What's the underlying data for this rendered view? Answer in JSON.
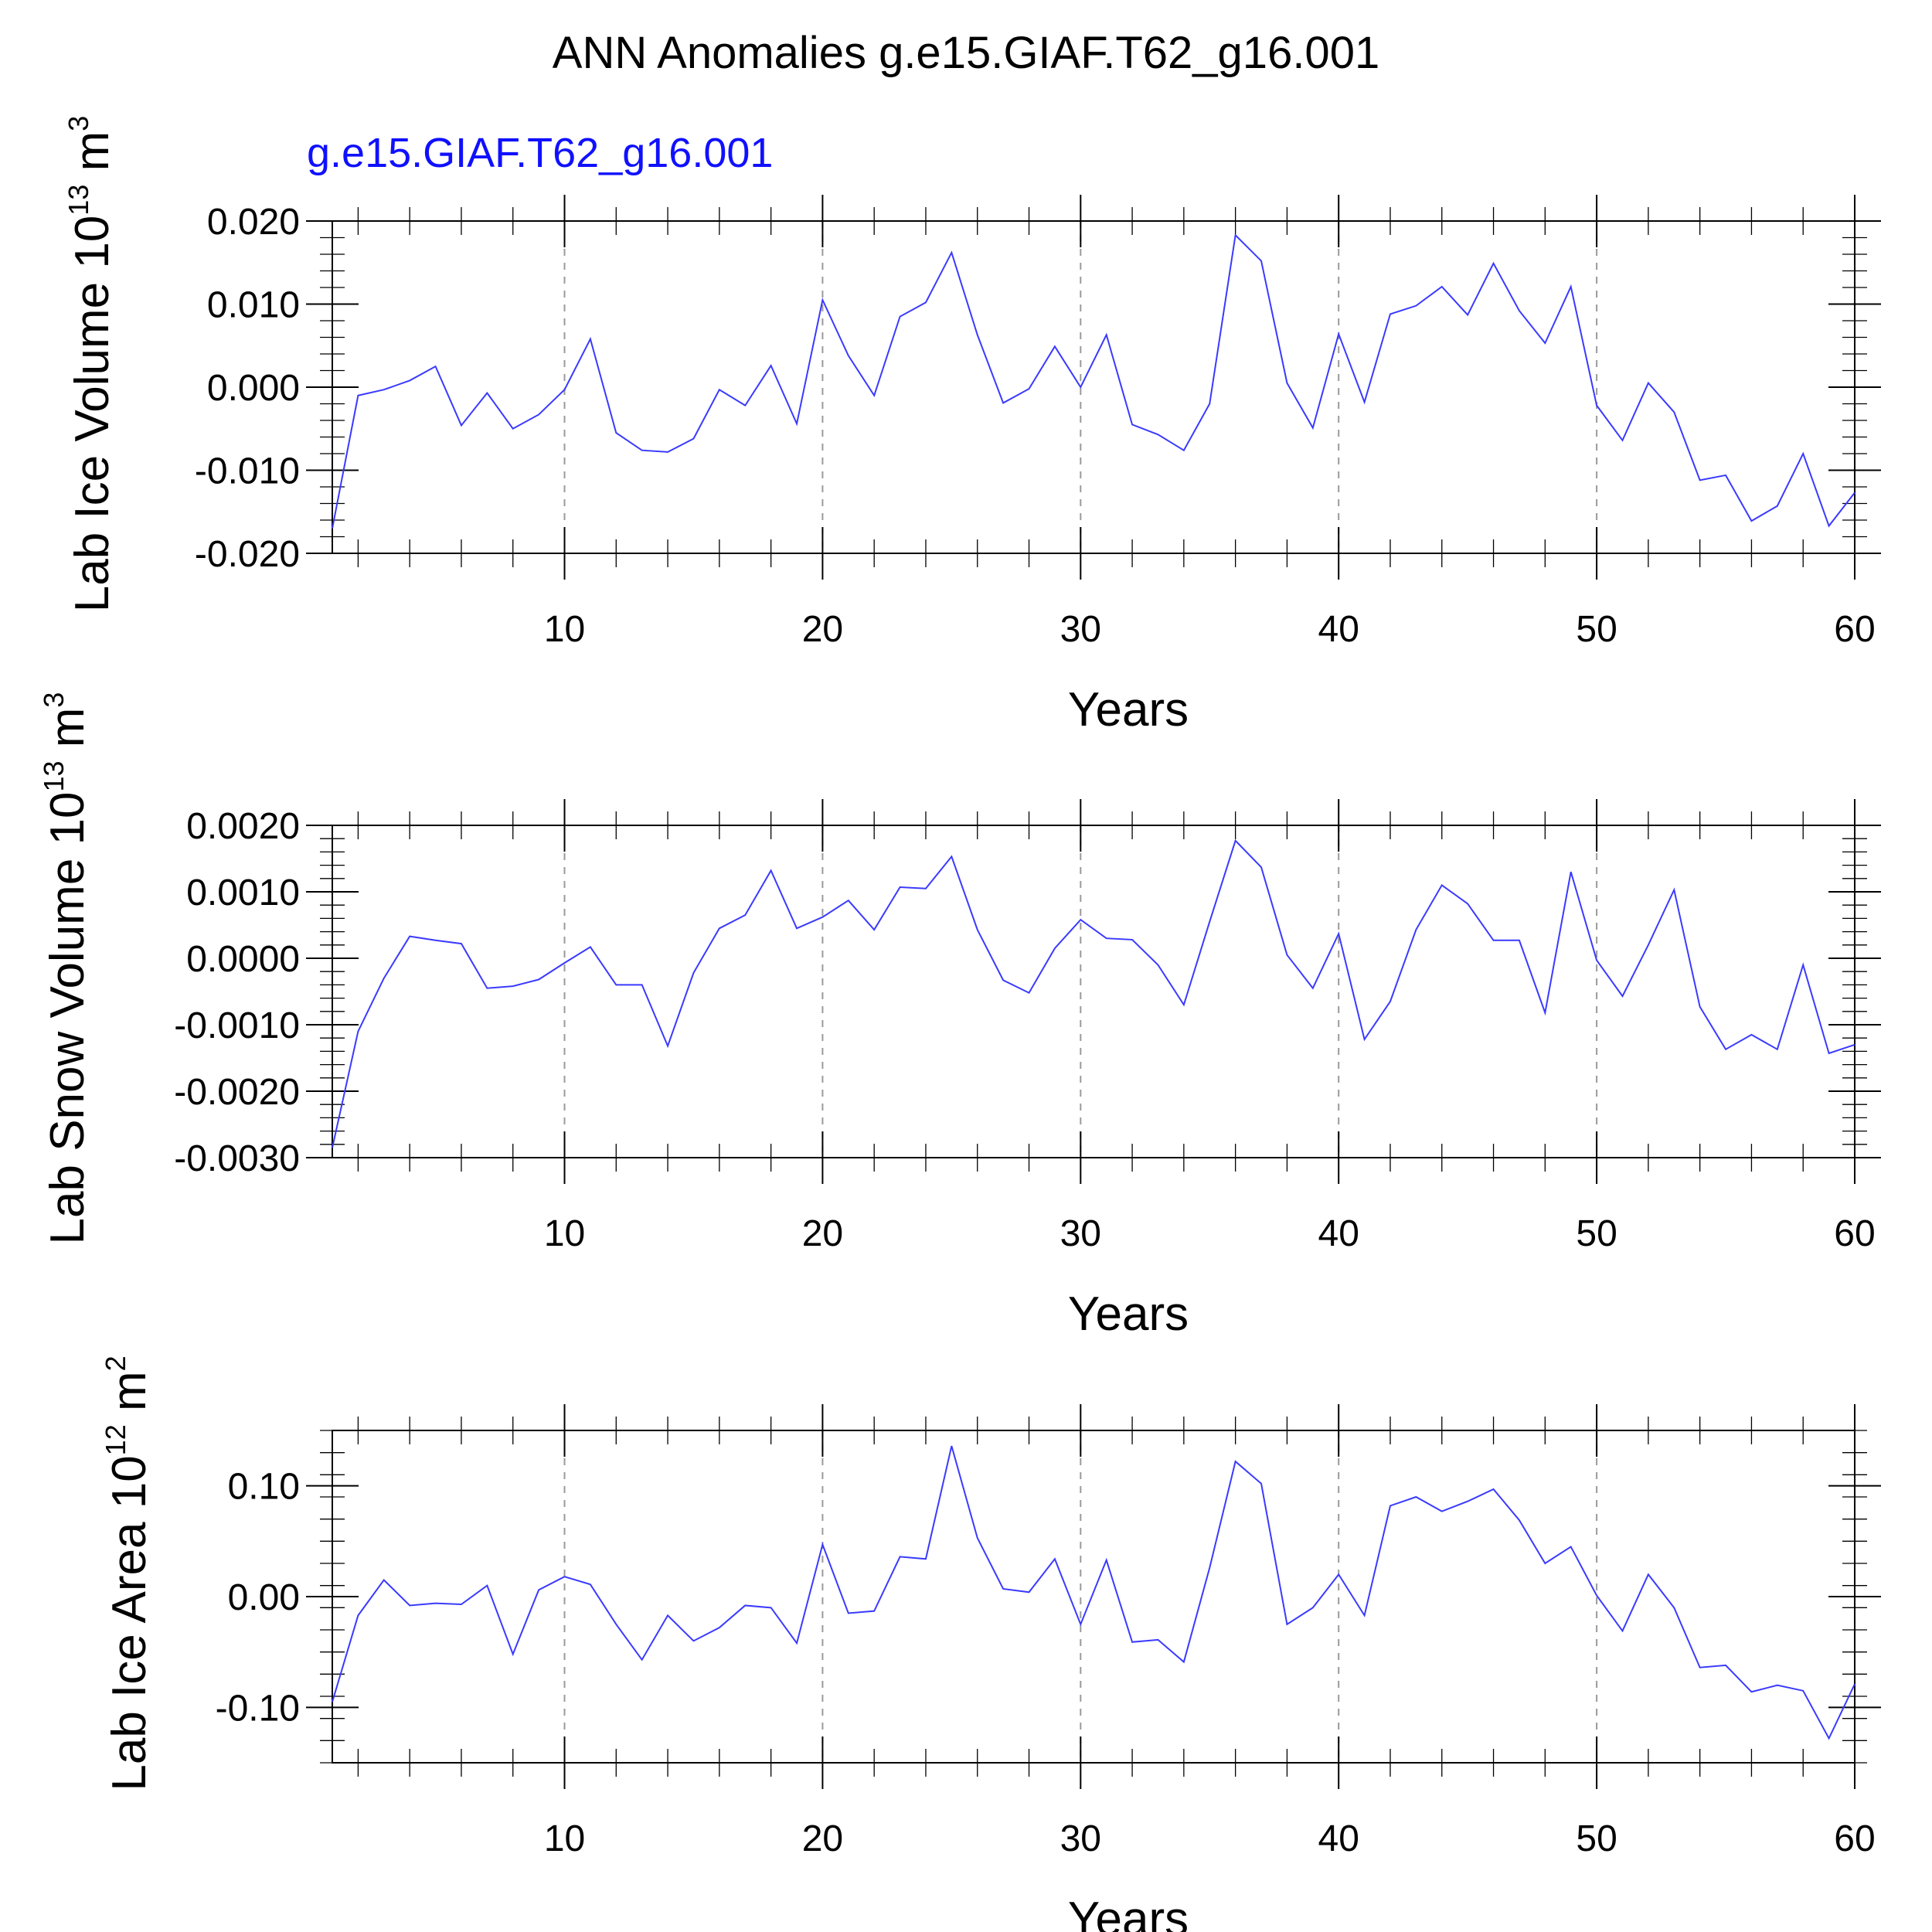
{
  "title": "ANN Anomalies g.e15.GIAF.T62_g16.001",
  "chart_data": [
    {
      "type": "line",
      "subtitle": "g.e15.GIAF.T62_g16.001",
      "ylabel": "Lab Ice Volume 10",
      "ylabel_exp": "13",
      "ylabel_unit": " m",
      "ylabel_unit_exp": "3",
      "xlabel": "Years",
      "xlim": [
        1,
        60
      ],
      "ylim": [
        -0.02,
        0.02
      ],
      "y_major_ticks": [
        -0.02,
        -0.01,
        0.0,
        0.01,
        0.02
      ],
      "y_tick_labels": [
        "-0.020",
        "-0.010",
        "0.000",
        "0.010",
        "0.020"
      ],
      "y_minor_step": 0.002,
      "x_ticks": [
        10,
        20,
        30,
        40,
        50,
        60
      ],
      "x_tick_labels": [
        "10",
        "20",
        "30",
        "40",
        "50",
        "60"
      ],
      "gridlines_x": [
        10,
        20,
        30,
        40,
        50
      ],
      "line_color": "#3a3aff",
      "series": [
        {
          "values": [
            -0.017,
            -0.001,
            -0.0003,
            0.0008,
            0.0025,
            -0.0046,
            -0.0007,
            -0.005,
            -0.0033,
            -0.0003,
            0.0058,
            -0.0055,
            -0.0076,
            -0.0078,
            -0.0062,
            -0.0003,
            -0.0022,
            0.0026,
            -0.0044,
            0.0105,
            0.0038,
            -0.001,
            0.0085,
            0.0102,
            0.0162,
            0.0063,
            -0.0019,
            -0.0002,
            0.0049,
            0.0,
            0.0063,
            -0.0045,
            -0.0057,
            -0.0076,
            -0.002,
            0.0183,
            0.0152,
            0.0005,
            -0.0049,
            0.0064,
            -0.0018,
            0.0088,
            0.0098,
            0.0121,
            0.0087,
            0.0149,
            0.0092,
            0.0053,
            0.0121,
            -0.0022,
            -0.0064,
            0.0005,
            -0.003,
            -0.0112,
            -0.0106,
            -0.0161,
            -0.0143,
            -0.008,
            -0.0167,
            -0.0127
          ]
        }
      ]
    },
    {
      "type": "line",
      "ylabel": "Lab Snow Volume 10",
      "ylabel_exp": "13",
      "ylabel_unit": " m",
      "ylabel_unit_exp": "3",
      "xlabel": "Years",
      "xlim": [
        1,
        60
      ],
      "ylim": [
        -0.003,
        0.002
      ],
      "y_major_ticks": [
        -0.003,
        -0.002,
        -0.001,
        0.0,
        0.001,
        0.002
      ],
      "y_tick_labels": [
        "-0.0030",
        "-0.0020",
        "-0.0010",
        "0.0000",
        "0.0010",
        "0.0020"
      ],
      "y_minor_step": 0.0002,
      "x_ticks": [
        10,
        20,
        30,
        40,
        50,
        60
      ],
      "x_tick_labels": [
        "10",
        "20",
        "30",
        "40",
        "50",
        "60"
      ],
      "gridlines_x": [
        10,
        20,
        30,
        40,
        50
      ],
      "line_color": "#3a3aff",
      "series": [
        {
          "values": [
            -0.00285,
            -0.0011,
            -0.0003,
            0.00033,
            0.00027,
            0.00022,
            -0.00045,
            -0.00042,
            -0.00032,
            -7e-05,
            0.00017,
            -0.0004,
            -0.0004,
            -0.00132,
            -0.00022,
            0.00045,
            0.00065,
            0.00132,
            0.00045,
            0.00062,
            0.00087,
            0.00043,
            0.00107,
            0.00105,
            0.00153,
            0.00043,
            -0.00033,
            -0.00052,
            0.00015,
            0.00058,
            0.0003,
            0.00028,
            -0.0001,
            -0.0007,
            0.00055,
            0.00177,
            0.00137,
            5e-05,
            -0.00045,
            0.00037,
            -0.00122,
            -0.00065,
            0.00043,
            0.0011,
            0.00082,
            0.00027,
            0.00027,
            -0.00082,
            0.0013,
            -3e-05,
            -0.00057,
            0.0002,
            0.00103,
            -0.00073,
            -0.00137,
            -0.00115,
            -0.00137,
            -0.0001,
            -0.00143,
            -0.0013
          ]
        }
      ]
    },
    {
      "type": "line",
      "ylabel": "Lab Ice Area 10",
      "ylabel_exp": "12",
      "ylabel_unit": " m",
      "ylabel_unit_exp": "2",
      "xlabel": "Years",
      "xlim": [
        1,
        60
      ],
      "ylim": [
        -0.15,
        0.15
      ],
      "y_major_ticks": [
        -0.1,
        0.0,
        0.1
      ],
      "y_tick_labels": [
        "-0.10",
        "0.00",
        "0.10"
      ],
      "y_minor_step": 0.02,
      "x_ticks": [
        10,
        20,
        30,
        40,
        50,
        60
      ],
      "x_tick_labels": [
        "10",
        "20",
        "30",
        "40",
        "50",
        "60"
      ],
      "gridlines_x": [
        10,
        20,
        30,
        40,
        50
      ],
      "line_color": "#3a3aff",
      "series": [
        {
          "values": [
            -0.095,
            -0.017,
            0.015,
            -0.008,
            -0.006,
            -0.007,
            0.01,
            -0.052,
            0.006,
            0.018,
            0.011,
            -0.025,
            -0.057,
            -0.017,
            -0.04,
            -0.028,
            -0.008,
            -0.01,
            -0.042,
            0.047,
            -0.015,
            -0.013,
            0.036,
            0.034,
            0.136,
            0.053,
            0.007,
            0.004,
            0.034,
            -0.025,
            0.033,
            -0.041,
            -0.039,
            -0.059,
            0.026,
            0.122,
            0.102,
            -0.025,
            -0.01,
            0.02,
            -0.017,
            0.082,
            0.09,
            0.077,
            0.086,
            0.097,
            0.069,
            0.03,
            0.045,
            0.001,
            -0.031,
            0.02,
            -0.01,
            -0.064,
            -0.062,
            -0.086,
            -0.08,
            -0.085,
            -0.128,
            -0.079
          ]
        }
      ]
    }
  ]
}
